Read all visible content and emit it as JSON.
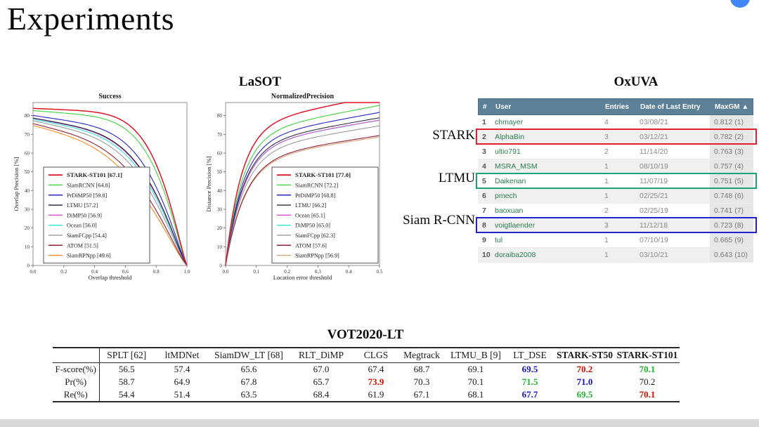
{
  "slide": {
    "title": "Experiments"
  },
  "lasot": {
    "heading": "LaSOT"
  },
  "chart_data": [
    {
      "type": "line",
      "title": "Success",
      "xlabel": "Overlap threshold",
      "ylabel": "Overlap Precision [%]",
      "xlim": [
        0,
        1.0
      ],
      "ylim": [
        0,
        87
      ],
      "xticks": [
        0,
        0.2,
        0.4,
        0.6,
        0.8,
        1.0
      ],
      "yticks": [
        0,
        10,
        20,
        30,
        40,
        50,
        60,
        70,
        80
      ],
      "grid": false,
      "legend": "inside-left",
      "curve_model": "decay",
      "series": [
        {
          "name": "STARK-ST101",
          "score": 67.1,
          "color": "#e0162b",
          "bold": true
        },
        {
          "name": "SiamRCNN",
          "score": 64.8,
          "color": "#3fd23f"
        },
        {
          "name": "PrDiMP50",
          "score": 59.8,
          "color": "#2727c8"
        },
        {
          "name": "LTMU",
          "score": 57.2,
          "color": "#1c1c30"
        },
        {
          "name": "DiMP50",
          "score": 56.9,
          "color": "#d553d5"
        },
        {
          "name": "Ocean",
          "score": 56.0,
          "color": "#35e0d0"
        },
        {
          "name": "SiamFCpp",
          "score": 54.4,
          "color": "#9a9a9a"
        },
        {
          "name": "ATOM",
          "score": 51.5,
          "color": "#8e1f35"
        },
        {
          "name": "SiamRPNpp",
          "score": 49.6,
          "color": "#ff8b26"
        }
      ]
    },
    {
      "type": "line",
      "title": "NormalizedPrecision",
      "xlabel": "Location error threshold",
      "ylabel": "Distance Precision [%]",
      "xlim": [
        0,
        0.5
      ],
      "ylim": [
        0,
        87
      ],
      "xticks": [
        0,
        0.1,
        0.2,
        0.3,
        0.4,
        0.5
      ],
      "yticks": [
        0,
        10,
        20,
        30,
        40,
        50,
        60,
        70,
        80
      ],
      "grid": false,
      "legend": "inside-right",
      "curve_model": "rise",
      "series": [
        {
          "name": "STARK-ST101",
          "score": 77.0,
          "color": "#e0162b",
          "bold": true
        },
        {
          "name": "SiamRCNN",
          "score": 72.2,
          "color": "#3fd23f"
        },
        {
          "name": "PrDiMP50",
          "score": 68.8,
          "color": "#2727c8"
        },
        {
          "name": "LTMU",
          "score": 66.2,
          "color": "#2e2e3e"
        },
        {
          "name": "Ocean",
          "score": 65.1,
          "color": "#d553d5"
        },
        {
          "name": "DiMP50",
          "score": 65.0,
          "color": "#35e0d0"
        },
        {
          "name": "SiamFCpp",
          "score": 62.3,
          "color": "#9a9a9a"
        },
        {
          "name": "ATOM",
          "score": 57.6,
          "color": "#8e1f35"
        },
        {
          "name": "SiamRPNpp",
          "score": 56.9,
          "color": "#d2a679"
        }
      ]
    }
  ],
  "oxuva": {
    "heading": "OxUVA",
    "columns": [
      "#",
      "User",
      "Entries",
      "Date of Last Entry",
      "MaxGM"
    ],
    "sort_icon": "▲",
    "rows": [
      {
        "rank": "1",
        "user": "chmayer",
        "entries": "4",
        "date": "03/08/21",
        "maxgm": "0.812 (1)"
      },
      {
        "rank": "2",
        "user": "AlphaBin",
        "entries": "3",
        "date": "03/12/21",
        "maxgm": "0.782 (2)",
        "highlight": "stark"
      },
      {
        "rank": "3",
        "user": "ultio791",
        "entries": "2",
        "date": "11/14/20",
        "maxgm": "0.763 (3)"
      },
      {
        "rank": "4",
        "user": "MSRA_MSM",
        "entries": "1",
        "date": "08/10/19",
        "maxgm": "0.757 (4)"
      },
      {
        "rank": "5",
        "user": "Daikenan",
        "entries": "1",
        "date": "11/07/19",
        "maxgm": "0.751 (5)",
        "highlight": "ltmu"
      },
      {
        "rank": "6",
        "user": "pmech",
        "entries": "1",
        "date": "02/25/21",
        "maxgm": "0.748 (6)"
      },
      {
        "rank": "7",
        "user": "baoxuan",
        "entries": "2",
        "date": "02/25/19",
        "maxgm": "0.741 (7)"
      },
      {
        "rank": "8",
        "user": "voigtlaender",
        "entries": "3",
        "date": "11/12/18",
        "maxgm": "0.723 (8)",
        "highlight": "siamrcnn"
      },
      {
        "rank": "9",
        "user": "tul",
        "entries": "1",
        "date": "07/10/19",
        "maxgm": "0.665 (9)"
      },
      {
        "rank": "10",
        "user": "doraiba2008",
        "entries": "1",
        "date": "03/10/21",
        "maxgm": "0.643 (10)"
      }
    ],
    "labels": [
      {
        "text": "STARK"
      },
      {
        "text": "LTMU"
      },
      {
        "text": "Siam R-CNN"
      }
    ]
  },
  "vot": {
    "heading": "VOT2020-LT",
    "columns": [
      {
        "label": ""
      },
      {
        "label": "SPLT [62]"
      },
      {
        "label": "ltMDNet"
      },
      {
        "label": "SiamDW_LT [68]"
      },
      {
        "label": "RLT_DiMP"
      },
      {
        "label": "CLGS"
      },
      {
        "label": "Megtrack"
      },
      {
        "label": "LTMU_B [9]"
      },
      {
        "label": "LT_DSE"
      },
      {
        "label": "STARK-ST50",
        "bold": true
      },
      {
        "label": "STARK-ST101",
        "bold": true
      }
    ],
    "rows": [
      {
        "label": "F-score(%)",
        "values": [
          "56.5",
          "57.4",
          "65.6",
          "67.0",
          "67.4",
          "68.7",
          "69.1",
          "69.5",
          "70.2",
          "70.1"
        ],
        "styles": [
          null,
          null,
          null,
          null,
          null,
          null,
          null,
          "blue",
          "red",
          "green"
        ]
      },
      {
        "label": "Pr(%)",
        "values": [
          "58.7",
          "64.9",
          "67.8",
          "65.7",
          "73.9",
          "70.3",
          "70.1",
          "71.5",
          "71.0",
          "70.2"
        ],
        "styles": [
          null,
          null,
          null,
          null,
          "red",
          null,
          null,
          "green",
          "blue",
          null
        ]
      },
      {
        "label": "Re(%)",
        "values": [
          "54.4",
          "51.4",
          "63.5",
          "68.4",
          "61.9",
          "67.1",
          "68.1",
          "67.7",
          "69.5",
          "70.1"
        ],
        "styles": [
          null,
          null,
          null,
          null,
          null,
          null,
          null,
          "blue",
          "green",
          "red"
        ]
      }
    ]
  },
  "colors": {
    "highlight_stark": "#e01f2f",
    "highlight_ltmu": "#18a478",
    "highlight_siamrcnn": "#2222cc",
    "oxuva_header_bg": "#5d8099",
    "rank_best": "#cc1100",
    "rank_second": "#1fb528",
    "rank_third": "#1212cc",
    "fab": "#4286f5"
  }
}
